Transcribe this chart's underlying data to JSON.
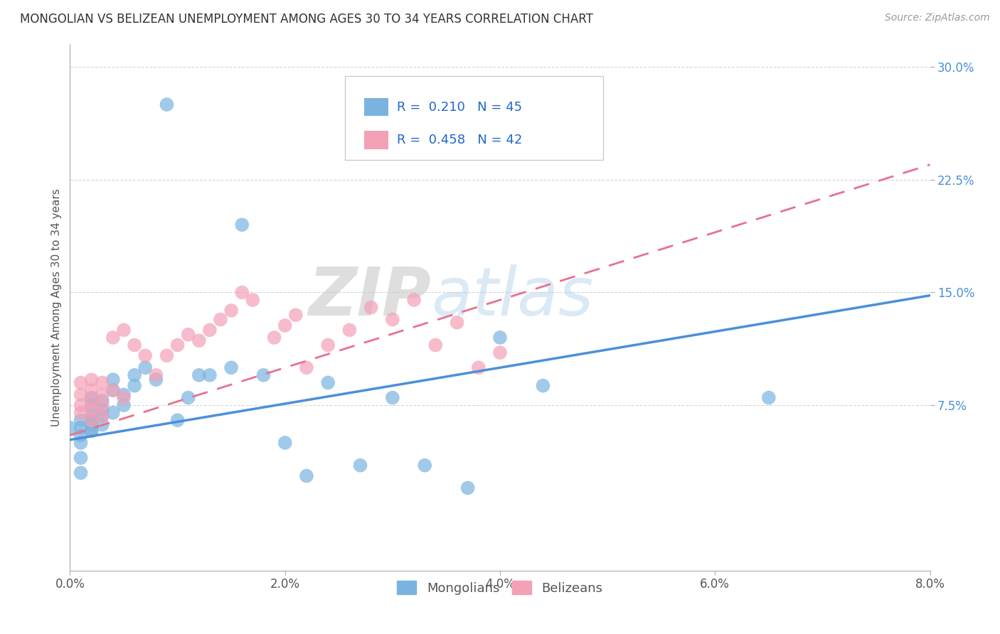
{
  "title": "MONGOLIAN VS BELIZEAN UNEMPLOYMENT AMONG AGES 30 TO 34 YEARS CORRELATION CHART",
  "source": "Source: ZipAtlas.com",
  "ylabel": "Unemployment Among Ages 30 to 34 years",
  "x_min": 0.0,
  "x_max": 0.08,
  "y_min": -0.035,
  "y_max": 0.315,
  "mongolian_color": "#7ab3e0",
  "belizean_color": "#f4a0b5",
  "mongolian_R": 0.21,
  "mongolian_N": 45,
  "belizean_R": 0.458,
  "belizean_N": 42,
  "legend_label_1": "Mongolians",
  "legend_label_2": "Belizeans",
  "watermark_zip": "ZIP",
  "watermark_atlas": "atlas",
  "grid_color": "#cccccc",
  "mongolian_x": [
    0.0,
    0.001,
    0.001,
    0.001,
    0.001,
    0.001,
    0.002,
    0.002,
    0.002,
    0.002,
    0.002,
    0.002,
    0.002,
    0.003,
    0.003,
    0.003,
    0.003,
    0.004,
    0.004,
    0.004,
    0.005,
    0.005,
    0.006,
    0.006,
    0.007,
    0.008,
    0.009,
    0.01,
    0.011,
    0.012,
    0.013,
    0.015,
    0.016,
    0.018,
    0.02,
    0.022,
    0.024,
    0.027,
    0.03,
    0.033,
    0.037,
    0.04,
    0.044,
    0.065,
    0.001
  ],
  "mongolian_y": [
    0.06,
    0.055,
    0.06,
    0.05,
    0.065,
    0.04,
    0.058,
    0.062,
    0.065,
    0.068,
    0.075,
    0.08,
    0.058,
    0.062,
    0.068,
    0.072,
    0.078,
    0.07,
    0.085,
    0.092,
    0.075,
    0.082,
    0.088,
    0.095,
    0.1,
    0.092,
    0.275,
    0.065,
    0.08,
    0.095,
    0.095,
    0.1,
    0.195,
    0.095,
    0.05,
    0.028,
    0.09,
    0.035,
    0.08,
    0.035,
    0.02,
    0.12,
    0.088,
    0.08,
    0.03
  ],
  "belizean_x": [
    0.001,
    0.001,
    0.001,
    0.001,
    0.002,
    0.002,
    0.002,
    0.002,
    0.002,
    0.003,
    0.003,
    0.003,
    0.003,
    0.004,
    0.004,
    0.005,
    0.005,
    0.006,
    0.007,
    0.008,
    0.009,
    0.01,
    0.011,
    0.012,
    0.013,
    0.014,
    0.015,
    0.016,
    0.017,
    0.019,
    0.02,
    0.021,
    0.022,
    0.024,
    0.026,
    0.028,
    0.03,
    0.032,
    0.034,
    0.036,
    0.038,
    0.04
  ],
  "belizean_y": [
    0.07,
    0.075,
    0.082,
    0.09,
    0.065,
    0.072,
    0.078,
    0.085,
    0.092,
    0.068,
    0.075,
    0.082,
    0.09,
    0.085,
    0.12,
    0.08,
    0.125,
    0.115,
    0.108,
    0.095,
    0.108,
    0.115,
    0.122,
    0.118,
    0.125,
    0.132,
    0.138,
    0.15,
    0.145,
    0.12,
    0.128,
    0.135,
    0.1,
    0.115,
    0.125,
    0.14,
    0.132,
    0.145,
    0.115,
    0.13,
    0.1,
    0.11
  ],
  "mong_line_x0": 0.0,
  "mong_line_y0": 0.052,
  "mong_line_x1": 0.08,
  "mong_line_y1": 0.148,
  "bel_line_x0": 0.0,
  "bel_line_y0": 0.055,
  "bel_line_x1": 0.08,
  "bel_line_y1": 0.235
}
